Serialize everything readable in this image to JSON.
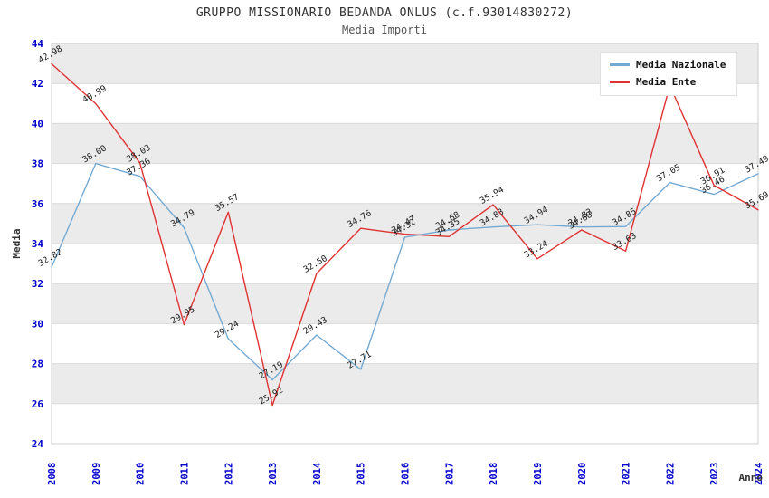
{
  "header": {
    "title": "GRUPPO MISSIONARIO BEDANDA ONLUS (c.f.93014830272)",
    "subtitle": "Media Importi"
  },
  "legend": {
    "position": "top-right",
    "items": [
      {
        "label": "Media Nazionale",
        "color": "#74AAD2"
      },
      {
        "label": "Media Ente",
        "color": "#E03232"
      }
    ]
  },
  "axes": {
    "y_title": "Media",
    "x_title": "Anno",
    "y_ticks": [
      24,
      26,
      28,
      30,
      32,
      34,
      36,
      38,
      40,
      42,
      44
    ],
    "x_ticks": [
      "2008",
      "2009",
      "2010",
      "2011",
      "2012",
      "2013",
      "2014",
      "2015",
      "2016",
      "2017",
      "2018",
      "2019",
      "2020",
      "2021",
      "2022",
      "2023",
      "2024"
    ]
  },
  "colors": {
    "axis_tick": "#0000CC",
    "band": "#EBEBEB",
    "grid": "#D9D9D9",
    "plot_border": "#CCCCCC",
    "point_label": "#1A1A1A",
    "axis_title": "#333333"
  },
  "chart_data": {
    "type": "line",
    "title": "GRUPPO MISSIONARIO BEDANDA ONLUS (c.f.93014830272)",
    "subtitle": "Media Importi",
    "xlabel": "Anno",
    "ylabel": "Media",
    "ylim": [
      24,
      44
    ],
    "grid": true,
    "bands": "alternating-horizontal-gray",
    "legend_position": "top-right",
    "x": [
      2008,
      2009,
      2010,
      2011,
      2012,
      2013,
      2014,
      2015,
      2016,
      2017,
      2018,
      2019,
      2020,
      2021,
      2022,
      2023,
      2024
    ],
    "series": [
      {
        "name": "Media Nazionale",
        "color": "#74AAD2",
        "values": [
          32.82,
          38.0,
          37.36,
          34.79,
          29.24,
          27.19,
          29.43,
          27.71,
          34.32,
          34.68,
          34.83,
          34.94,
          34.83,
          34.85,
          37.05,
          36.46,
          37.49
        ],
        "point_labels": [
          "32.82",
          "38.00",
          "37.36",
          "34.79",
          "29.24",
          "27.19",
          "29.43",
          "27.71",
          "34.32",
          "34.68",
          "34.83",
          "34.94",
          "34.83",
          "34.85",
          "37.05",
          "36.46",
          "37.49"
        ]
      },
      {
        "name": "Media Ente",
        "color": "#E03232",
        "values": [
          42.98,
          40.99,
          38.03,
          29.95,
          35.57,
          25.92,
          32.5,
          34.76,
          34.47,
          34.35,
          35.94,
          33.24,
          34.68,
          33.63,
          41.9,
          36.91,
          35.69
        ],
        "point_labels": [
          "42.98",
          "40.99",
          "38.03",
          "29.95",
          "35.57",
          "25.92",
          "32.50",
          "34.76",
          "34.47",
          "34.35",
          "35.94",
          "33.24",
          "34.68",
          "33.63",
          null,
          "36.91",
          "35.69"
        ]
      }
    ]
  }
}
